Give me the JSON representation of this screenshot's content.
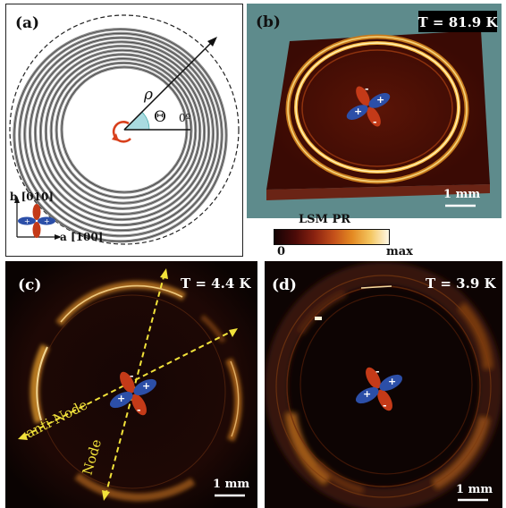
{
  "panels": {
    "a": {
      "label": "(a)",
      "rho": "ρ",
      "theta": "Θ",
      "zero_deg": "0º",
      "axis_b": "b [010]",
      "axis_a": "a [100]"
    },
    "b": {
      "label": "(b)",
      "temperature": "T = 81.9 K",
      "scale": "1 mm"
    },
    "c": {
      "label": "(c)",
      "temperature": "T = 4.4 K",
      "scale": "1 mm",
      "anti_node": "anti-Node",
      "node": "Node"
    },
    "d": {
      "label": "(d)",
      "temperature": "T = 3.9 K",
      "scale": "1 mm"
    }
  },
  "colorbar": {
    "title": "LSM PR",
    "min": "0",
    "max": "max"
  },
  "orbital": {
    "plus": "+",
    "minus": "-"
  },
  "colors": {
    "ring_grey": "#8c8c8c",
    "lobe_blue": "#2c4fa8",
    "lobe_red": "#c43a18",
    "panel_b_bg": "#5e8b8c",
    "dashed_yellow": "#f2e23a"
  }
}
